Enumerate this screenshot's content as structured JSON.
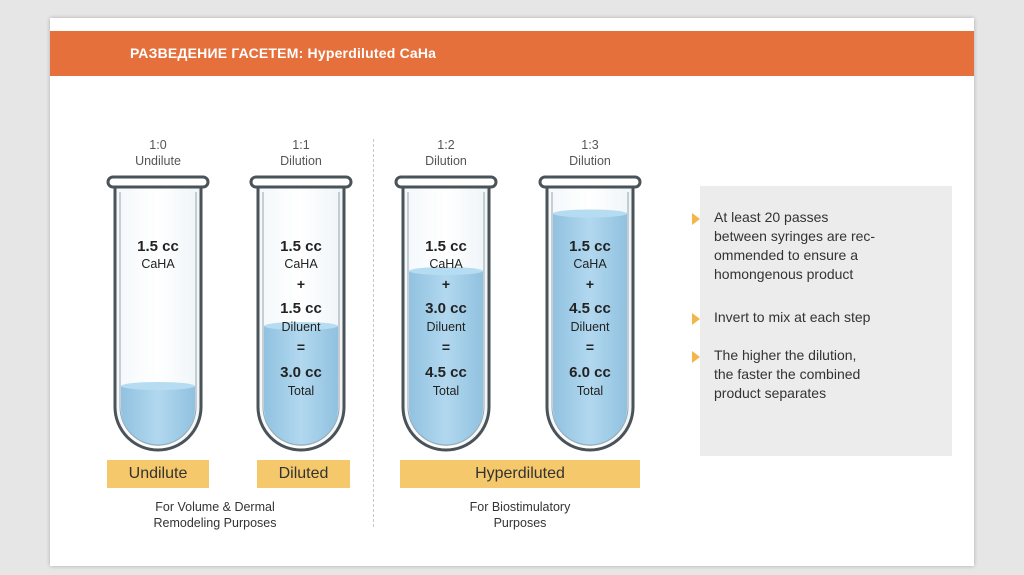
{
  "slide": {
    "title": "РАЗВЕДЕНИЕ ГАСЕТЕМ: Hyperdiluted CaHa"
  },
  "colors": {
    "banner": "#e5703b",
    "category_box": "#f5c96b",
    "bullet_marker": "#f2b64a",
    "fluid": "#8ec3e3",
    "panel": "#ececec"
  },
  "tubes": [
    {
      "ratio": "1:0",
      "ratio_label": "Undilute",
      "caha": "1.5 cc",
      "caha_label": "CaHA",
      "fill_fraction": 0.24
    },
    {
      "ratio": "1:1",
      "ratio_label": "Dilution",
      "caha": "1.5 cc",
      "caha_label": "CaHA",
      "plus": "+",
      "diluent": "1.5 cc",
      "diluent_label": "Diluent",
      "equals": "=",
      "total": "3.0 cc",
      "total_label": "Total",
      "fill_fraction": 0.48
    },
    {
      "ratio": "1:2",
      "ratio_label": "Dilution",
      "caha": "1.5 cc",
      "caha_label": "CaHA",
      "plus": "+",
      "diluent": "3.0 cc",
      "diluent_label": "Diluent",
      "equals": "=",
      "total": "4.5 cc",
      "total_label": "Total",
      "fill_fraction": 0.7
    },
    {
      "ratio": "1:3",
      "ratio_label": "Dilution",
      "caha": "1.5 cc",
      "caha_label": "CaHA",
      "plus": "+",
      "diluent": "4.5 cc",
      "diluent_label": "Diluent",
      "equals": "=",
      "total": "6.0 cc",
      "total_label": "Total",
      "fill_fraction": 0.93
    }
  ],
  "categories": [
    "Undilute",
    "Diluted",
    "Hyperdiluted"
  ],
  "purposes": {
    "volume": [
      "For Volume & Dermal",
      "Remodeling Purposes"
    ],
    "biostim": [
      "For Biostimulatory",
      "Purposes"
    ]
  },
  "bullets": [
    [
      "At least 20 passes",
      "between syringes are rec-",
      "ommended to ensure a",
      "homongenous product"
    ],
    [
      "Invert to mix at each step"
    ],
    [
      "The higher the dilution,",
      "the faster the combined",
      "product separates"
    ]
  ]
}
